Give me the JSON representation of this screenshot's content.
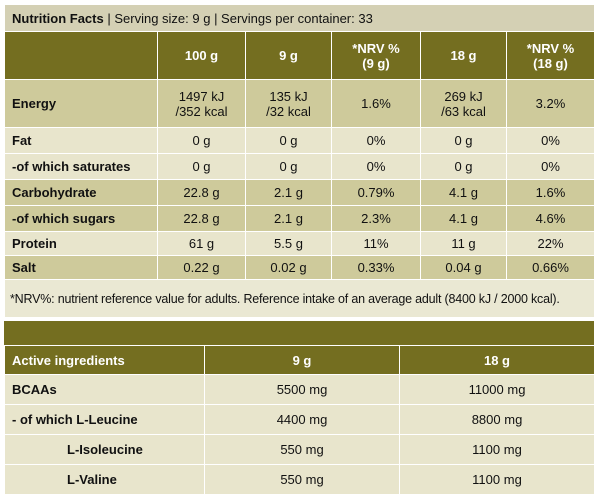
{
  "header": {
    "title": "Nutrition Facts",
    "serving_info": "| Serving size: 9 g | Servings per container: 33"
  },
  "nutrition": {
    "columns": [
      "",
      "100 g",
      "9 g",
      "*NRV %",
      "18 g",
      "*NRV %"
    ],
    "column_sub": [
      "",
      "",
      "",
      "(9 g)",
      "",
      "(18 g)"
    ],
    "rows": [
      {
        "label": "Energy",
        "values": [
          "1497 kJ",
          "135 kJ",
          "1.6%",
          "269 kJ",
          "3.2%"
        ],
        "sub": [
          "/352 kcal",
          "/32 kcal",
          "",
          "/63 kcal",
          ""
        ]
      },
      {
        "label": "Fat",
        "values": [
          "0 g",
          "0 g",
          "0%",
          "0 g",
          "0%"
        ]
      },
      {
        "label": "-of which saturates",
        "values": [
          "0 g",
          "0 g",
          "0%",
          "0 g",
          "0%"
        ]
      },
      {
        "label": "Carbohydrate",
        "values": [
          "22.8 g",
          "2.1 g",
          "0.79%",
          "4.1 g",
          "1.6%"
        ]
      },
      {
        "label": "-of which sugars",
        "values": [
          "22.8 g",
          "2.1 g",
          "2.3%",
          "4.1 g",
          "4.6%"
        ]
      },
      {
        "label": "Protein",
        "values": [
          "61 g",
          "5.5 g",
          "11%",
          "11 g",
          "22%"
        ]
      },
      {
        "label": "Salt",
        "values": [
          "0.22 g",
          "0.02 g",
          "0.33%",
          "0.04 g",
          "0.66%"
        ]
      }
    ],
    "footnote": "*NRV%: nutrient reference value for adults. Reference intake of an average adult (8400 kJ / 2000 kcal)."
  },
  "active": {
    "columns": [
      "Active ingredients",
      "9 g",
      "18 g"
    ],
    "rows": [
      {
        "label": "BCAAs",
        "values": [
          "5500 mg",
          "11000 mg"
        ]
      },
      {
        "label": "- of which L-Leucine",
        "values": [
          "4400 mg",
          "8800 mg"
        ]
      },
      {
        "label": "L-Isoleucine",
        "values": [
          "550 mg",
          "1100 mg"
        ]
      },
      {
        "label": "L-Valine",
        "values": [
          "550 mg",
          "1100 mg"
        ]
      }
    ]
  },
  "colors": {
    "header_olive": "#746e20",
    "band_dark": "#ceca9b",
    "band_light": "#e8e5cc",
    "title_bg": "#d4d0b4"
  }
}
